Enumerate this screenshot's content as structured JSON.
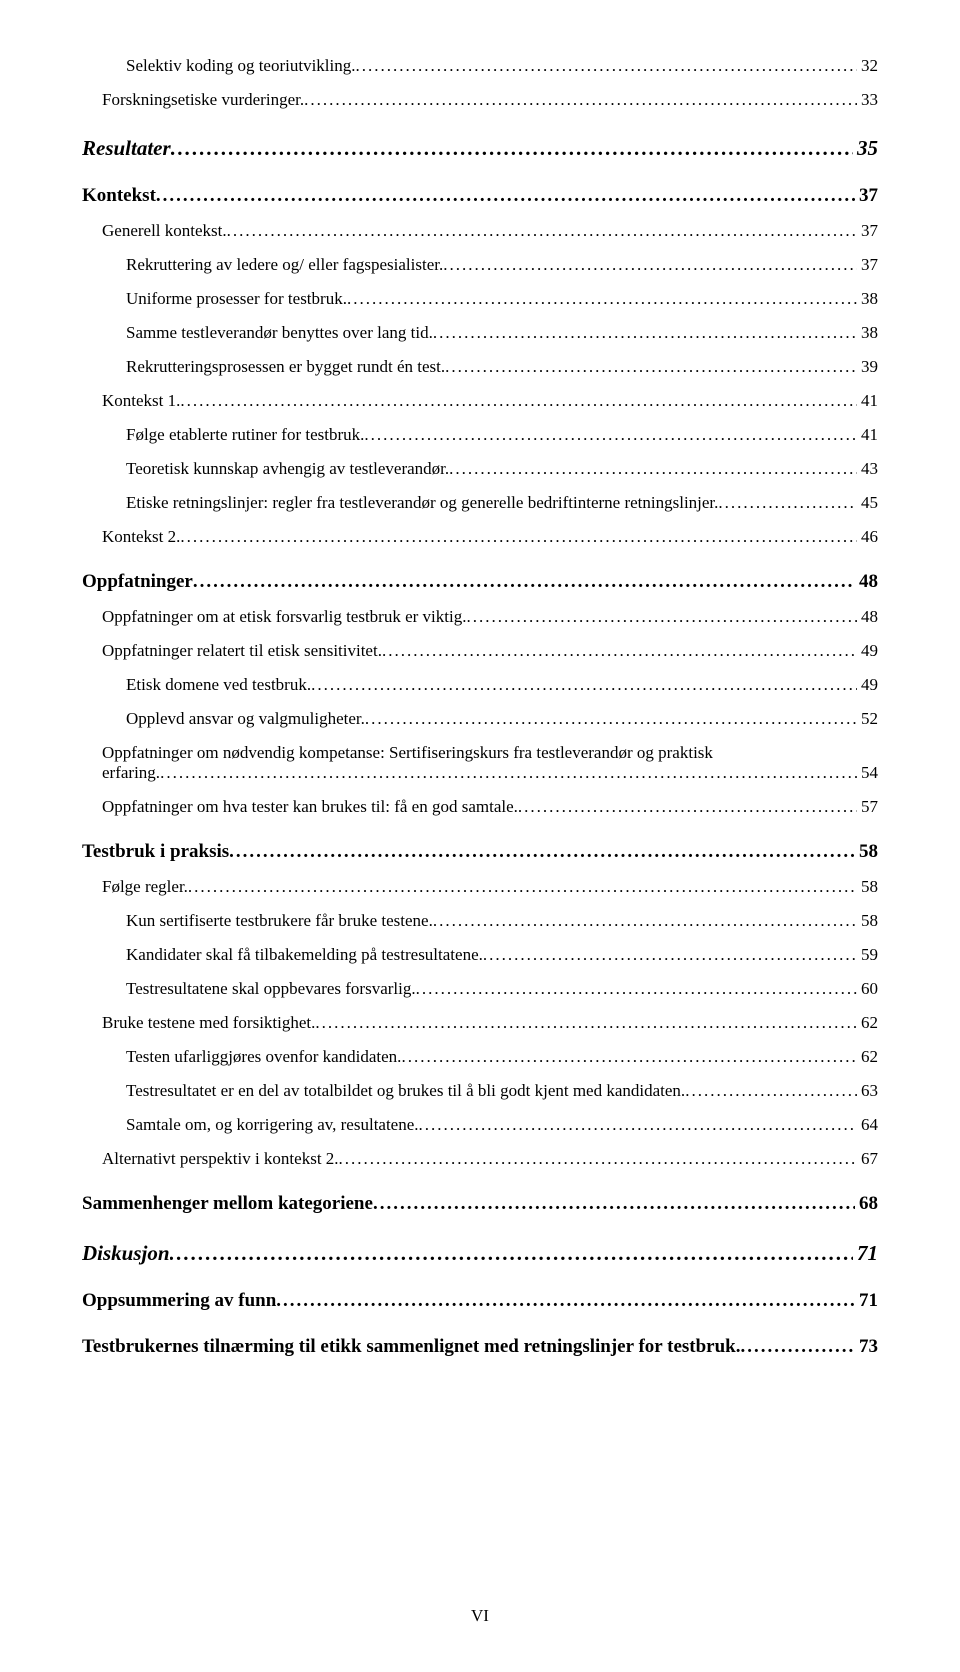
{
  "footer": "VI",
  "entries": [
    {
      "level": 3,
      "label": "Selektiv koding og teoriutvikling.",
      "page": "32"
    },
    {
      "level": 2,
      "label": "Forskningsetiske vurderinger.",
      "page": "33"
    },
    {
      "level": 0,
      "label": "Resultater",
      "page": "35"
    },
    {
      "level": 1,
      "label": "Kontekst",
      "page": "37"
    },
    {
      "level": 2,
      "label": "Generell kontekst.",
      "page": "37"
    },
    {
      "level": 3,
      "label": "Rekruttering av ledere og/ eller fagspesialister.",
      "page": "37"
    },
    {
      "level": 3,
      "label": "Uniforme prosesser for testbruk.",
      "page": "38"
    },
    {
      "level": 3,
      "label": "Samme testleverandør benyttes over lang tid.",
      "page": "38"
    },
    {
      "level": 3,
      "label": "Rekrutteringsprosessen er bygget rundt én test.",
      "page": "39"
    },
    {
      "level": 2,
      "label": "Kontekst 1.",
      "page": "41"
    },
    {
      "level": 3,
      "label": "Følge etablerte rutiner for testbruk.",
      "page": "41"
    },
    {
      "level": 3,
      "label": "Teoretisk kunnskap avhengig av testleverandør.",
      "page": "43"
    },
    {
      "level": 3,
      "label": "Etiske retningslinjer: regler fra testleverandør og generelle bedriftinterne retningslinjer.",
      "page": "45"
    },
    {
      "level": 2,
      "label": "Kontekst 2.",
      "page": "46"
    },
    {
      "level": 1,
      "label": "Oppfatninger",
      "page": "48"
    },
    {
      "level": 2,
      "label": "Oppfatninger om at etisk forsvarlig testbruk er viktig.",
      "page": "48"
    },
    {
      "level": 2,
      "label": "Oppfatninger relatert til etisk sensitivitet.",
      "page": "49"
    },
    {
      "level": 3,
      "label": "Etisk domene ved testbruk.",
      "page": "49"
    },
    {
      "level": 3,
      "label": "Opplevd ansvar og valgmuligheter.",
      "page": "52"
    },
    {
      "level": 2,
      "multiline": true,
      "label1": "Oppfatninger om nødvendig kompetanse: Sertifiseringskurs fra testleverandør og praktisk",
      "label2": "erfaring.",
      "page": "54"
    },
    {
      "level": 2,
      "label": "Oppfatninger om hva tester kan brukes til: få en god samtale.",
      "page": "57"
    },
    {
      "level": 1,
      "label": "Testbruk i praksis",
      "page": "58"
    },
    {
      "level": 2,
      "label": "Følge regler.",
      "page": "58"
    },
    {
      "level": 3,
      "label": "Kun sertifiserte testbrukere får bruke testene.",
      "page": "58"
    },
    {
      "level": 3,
      "label": "Kandidater skal få tilbakemelding på testresultatene.",
      "page": "59"
    },
    {
      "level": 3,
      "label": "Testresultatene skal oppbevares forsvarlig.",
      "page": "60"
    },
    {
      "level": 2,
      "label": "Bruke testene med forsiktighet.",
      "page": "62"
    },
    {
      "level": 3,
      "label": "Testen ufarliggjøres ovenfor kandidaten.",
      "page": "62"
    },
    {
      "level": 3,
      "label": "Testresultatet er en del av totalbildet og brukes til å bli godt kjent med kandidaten.",
      "page": "63"
    },
    {
      "level": 3,
      "label": "Samtale om, og korrigering av, resultatene.",
      "page": "64"
    },
    {
      "level": 2,
      "label": "Alternativt perspektiv i kontekst 2.",
      "page": "67"
    },
    {
      "level": 1,
      "label": "Sammenhenger mellom kategoriene",
      "page": "68"
    },
    {
      "level": 0,
      "label": "Diskusjon",
      "page": "71"
    },
    {
      "level": 1,
      "label": "Oppsummering av funn",
      "page": "71"
    },
    {
      "level": 1,
      "label": "Testbrukernes tilnærming til etikk sammenlignet med retningslinjer for testbruk.",
      "page": "73"
    }
  ]
}
